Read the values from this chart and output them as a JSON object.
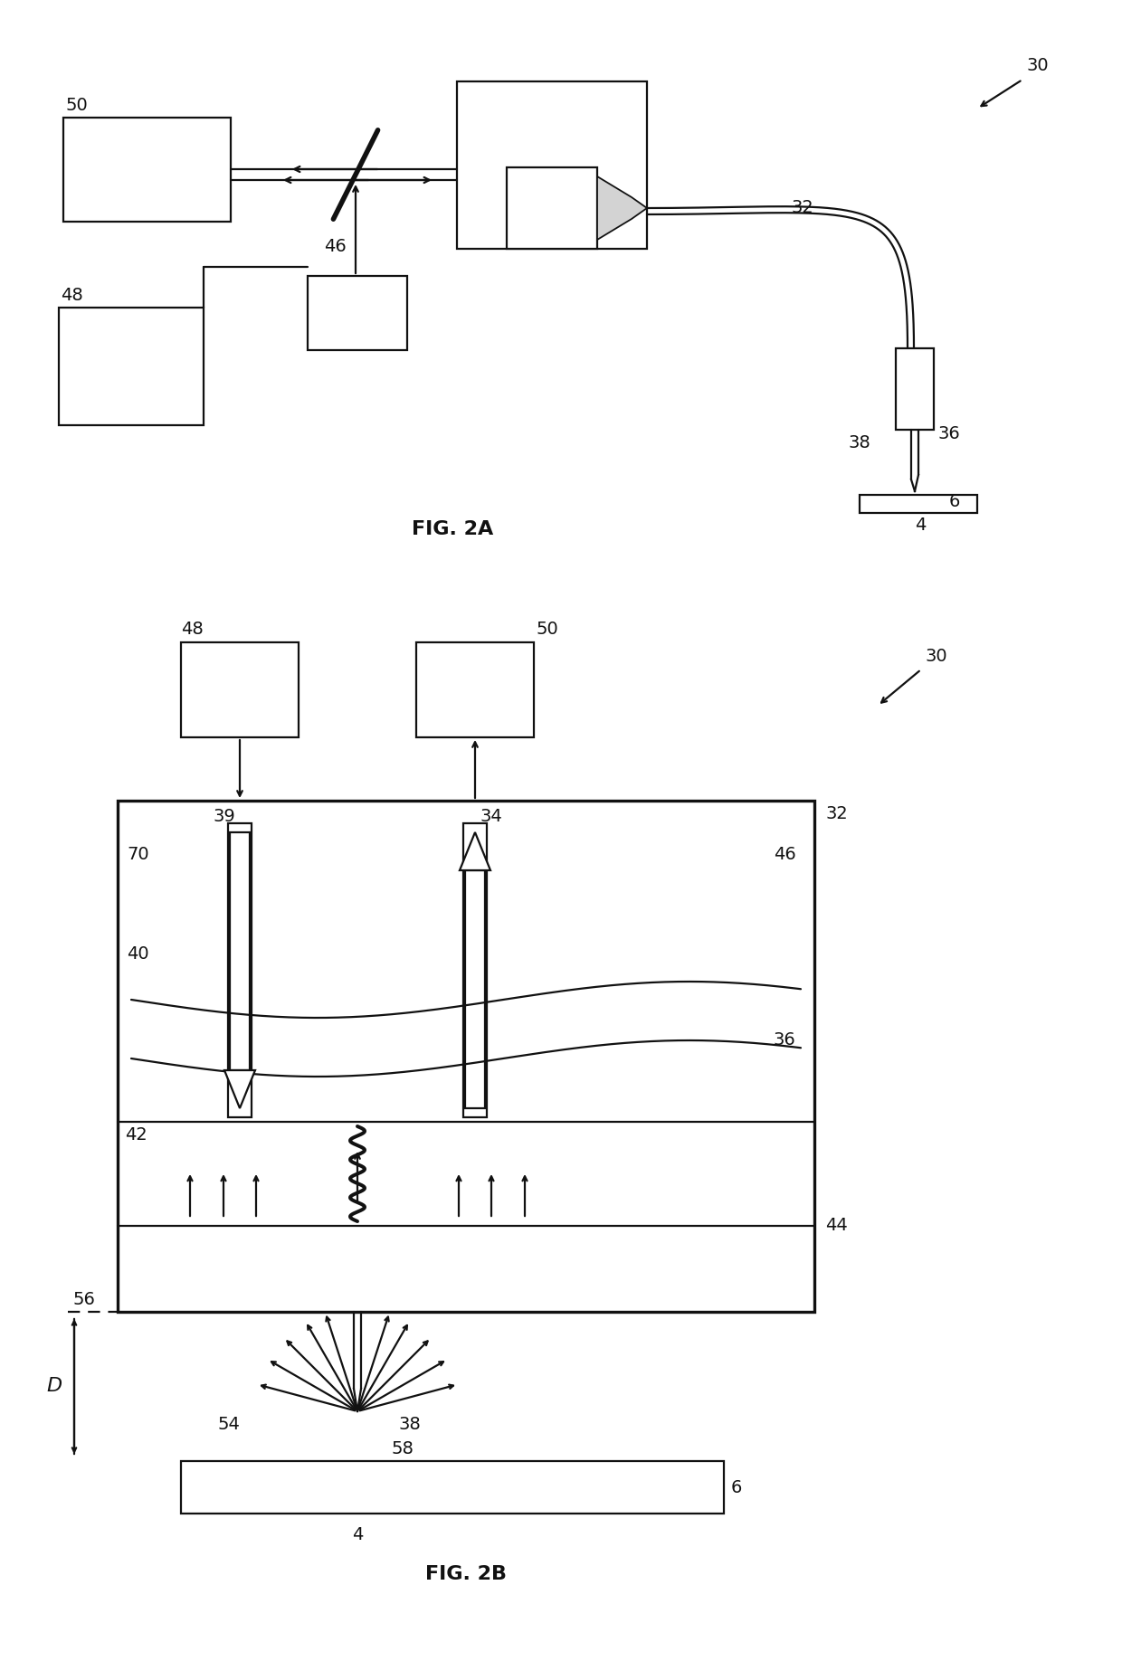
{
  "bg_color": "#ffffff",
  "line_color": "#111111",
  "lw": 1.6,
  "fig2a_label": "FIG. 2A",
  "fig2b_label": "FIG. 2B",
  "fs": 14,
  "fs_cap": 16
}
